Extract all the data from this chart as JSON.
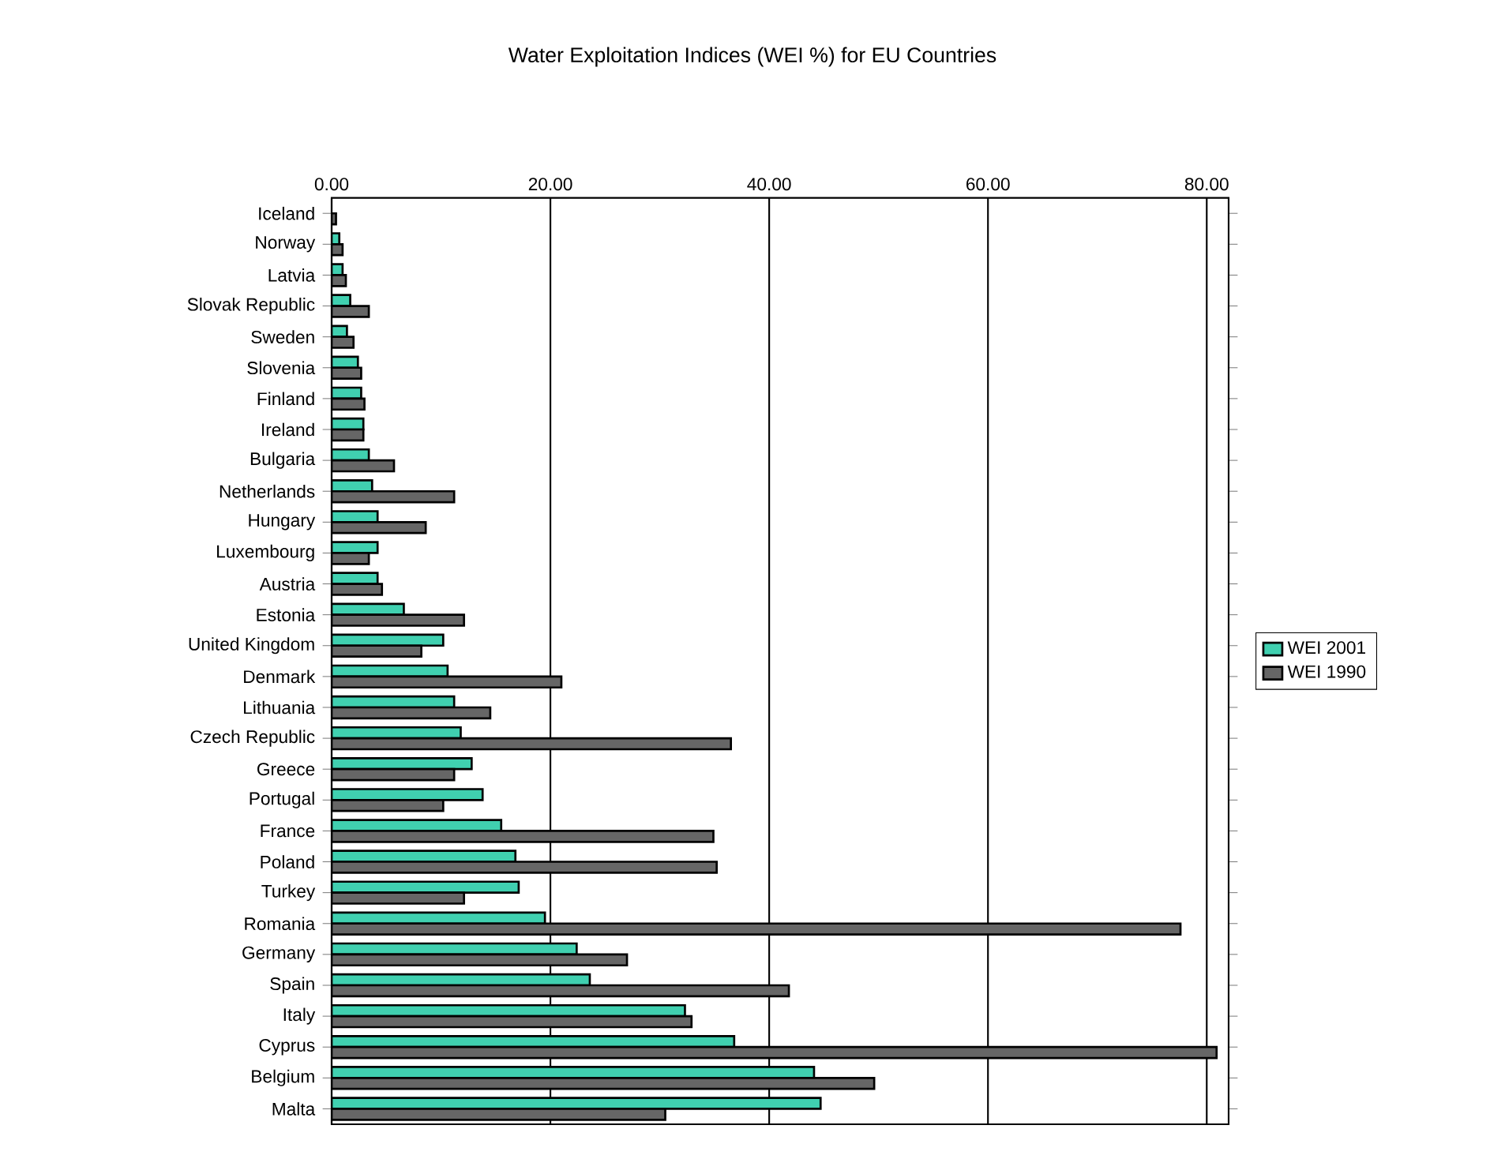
{
  "chart_data": {
    "type": "bar",
    "orientation": "horizontal",
    "title": "Water Exploitation Indices (WEI %) for EU Countries",
    "categories": [
      "Iceland",
      "Norway",
      "Latvia",
      "Slovak Republic",
      "Sweden",
      "Slovenia",
      "Finland",
      "Ireland",
      "Bulgaria",
      "Netherlands",
      "Hungary",
      "Luxembourg",
      "Austria",
      "Estonia",
      "United Kingdom",
      "Denmark",
      "Lithuania",
      "Czech Republic",
      "Greece",
      "Portugal",
      "France",
      "Poland",
      "Turkey",
      "Romania",
      "Germany",
      "Spain",
      "Italy",
      "Cyprus",
      "Belgium",
      "Malta"
    ],
    "series": [
      {
        "name": "WEI 2001",
        "color": "#40d0b0",
        "values": [
          null,
          0.7,
          1.0,
          1.7,
          1.4,
          2.4,
          2.7,
          2.9,
          3.4,
          3.7,
          4.2,
          4.2,
          4.2,
          6.6,
          10.2,
          10.6,
          11.2,
          11.8,
          12.8,
          13.8,
          15.5,
          16.8,
          17.1,
          19.5,
          22.4,
          23.6,
          32.3,
          36.8,
          44.1,
          44.7
        ]
      },
      {
        "name": "WEI 1990",
        "color": "#666666",
        "values": [
          0.4,
          1.0,
          1.3,
          3.4,
          2.0,
          2.7,
          3.0,
          2.9,
          5.7,
          11.2,
          8.6,
          3.4,
          4.6,
          12.1,
          8.2,
          21.0,
          14.5,
          36.5,
          11.2,
          10.2,
          34.9,
          35.2,
          12.1,
          77.6,
          27.0,
          41.8,
          32.9,
          80.9,
          49.6,
          30.5
        ]
      }
    ],
    "xlim": [
      0,
      82
    ],
    "xticks": [
      {
        "value": 0,
        "label": "0.00"
      },
      {
        "value": 20,
        "label": "20.00"
      },
      {
        "value": 40,
        "label": "40.00"
      },
      {
        "value": 60,
        "label": "60.00"
      },
      {
        "value": 80,
        "label": "80.00"
      }
    ],
    "grid": "x",
    "legend": "right"
  }
}
